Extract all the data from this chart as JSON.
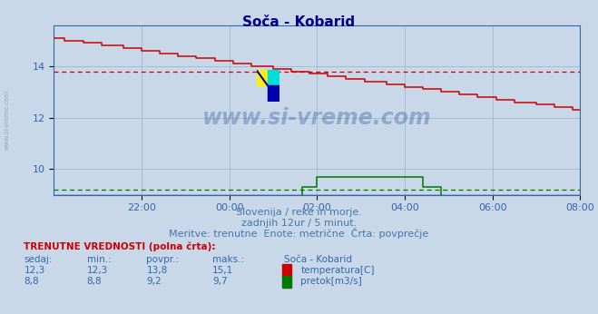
{
  "title": "Soča - Kobarid",
  "fig_bg_color": "#c8d8e8",
  "plot_bg_color": "#c8d8e8",
  "grid_color": "#a0b8d0",
  "temp_color": "#cc0000",
  "flow_color": "#007700",
  "height_color": "#0000bb",
  "axis_color": "#3366aa",
  "title_color": "#000088",
  "text_color": "#4477aa",
  "table_title_color": "#cc0000",
  "ylim": [
    9.0,
    15.6
  ],
  "yticks": [
    10,
    12,
    14
  ],
  "xlim": [
    0,
    144
  ],
  "x_ticks_positions": [
    24,
    48,
    72,
    96,
    120,
    144
  ],
  "x_ticks_labels": [
    "22:00",
    "00:00",
    "02:00",
    "04:00",
    "06:00",
    "08:00"
  ],
  "avg_temp": 13.8,
  "avg_flow": 9.2,
  "subtitle1": "Slovenija / reke in morje.",
  "subtitle2": "zadnjih 12ur / 5 minut.",
  "subtitle3": "Meritve: trenutne  Enote: metrične  Črta: povprečje",
  "table_title": "TRENUTNE VREDNOSTI (polna črta):",
  "col_headers": [
    "sedaj:",
    "min.:",
    "povpr.:",
    "maks.:",
    "Soča - Kobarid"
  ],
  "temp_row": [
    "12,3",
    "12,3",
    "13,8",
    "15,1"
  ],
  "flow_row": [
    "8,8",
    "8,8",
    "9,2",
    "9,7"
  ],
  "temp_label": "temperatura[C]",
  "flow_label": "pretok[m3/s]",
  "watermark_text": "www.si-vreme.com",
  "sidebar_text": "www.si-vreme.com"
}
